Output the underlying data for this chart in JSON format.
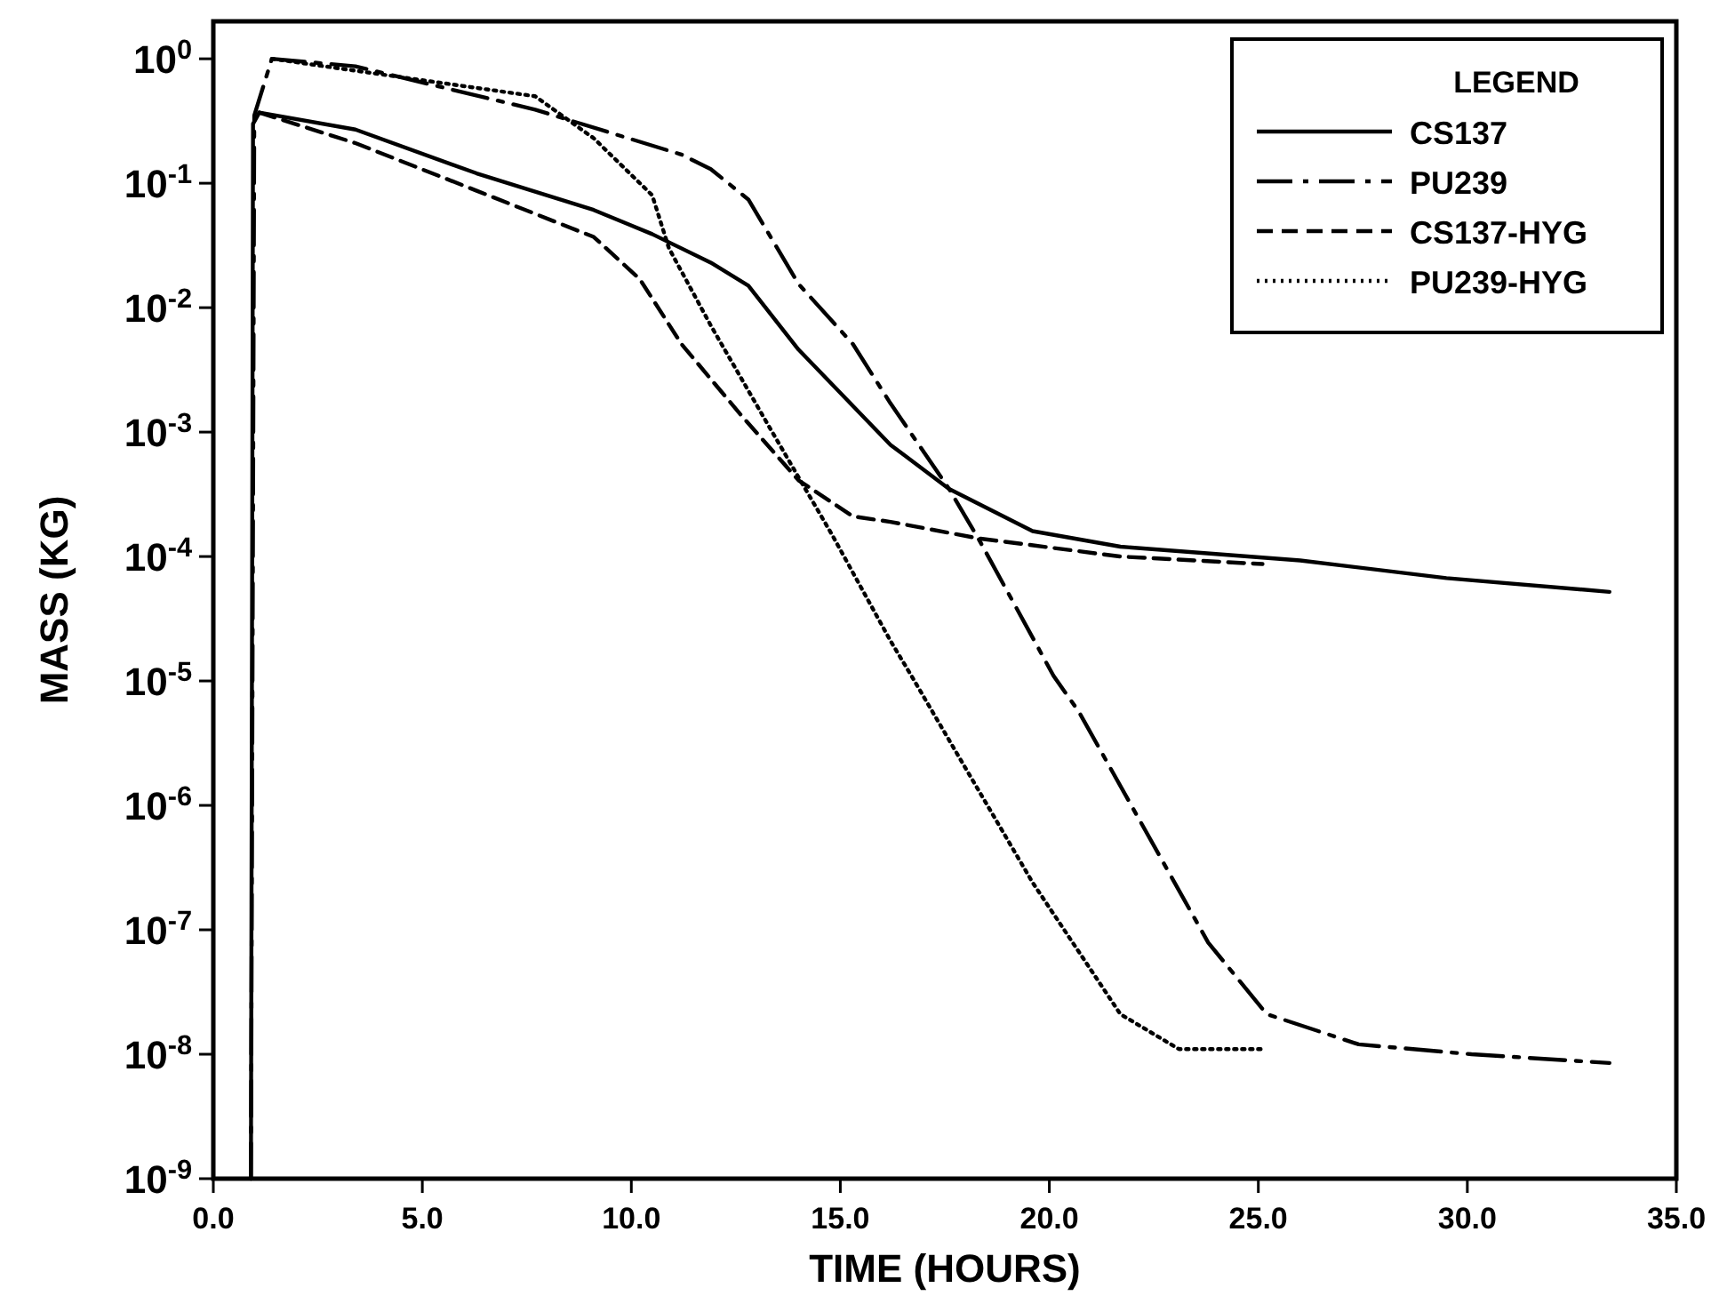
{
  "chart_data": {
    "type": "line",
    "xlabel": "TIME (HOURS)",
    "ylabel": "MASS (KG)",
    "legend_title": "LEGEND",
    "legend": "top right",
    "log": "y",
    "grid": false,
    "xlim": [
      0,
      35
    ],
    "xticks": [
      {
        "value": 0,
        "label": "0.0"
      },
      {
        "value": 5,
        "label": "5.0"
      },
      {
        "value": 10,
        "label": "10.0"
      },
      {
        "value": 15,
        "label": "15.0"
      },
      {
        "value": 20,
        "label": "20.0"
      },
      {
        "value": 25,
        "label": "25.0"
      },
      {
        "value": 30,
        "label": "30.0"
      },
      {
        "value": 35,
        "label": "35.0"
      }
    ],
    "ylim": [
      1e-09,
      2
    ],
    "yticks": [
      {
        "value": 1e-09,
        "label": "10$^{-9}$"
      },
      {
        "value": 1e-08,
        "label": "10$^{-8}$"
      },
      {
        "value": 1e-07,
        "label": "10$^{-7}$"
      },
      {
        "value": 1e-06,
        "label": "10$^{-6}$"
      },
      {
        "value": 1e-05,
        "label": "10$^{-5}$"
      },
      {
        "value": 0.0001,
        "label": "10$^{-4}$"
      },
      {
        "value": 0.001,
        "label": "10$^{-3}$"
      },
      {
        "value": 0.01,
        "label": "10$^{-2}$"
      },
      {
        "value": 0.1,
        "label": "10$^{-1}$"
      },
      {
        "value": 1,
        "label": "10$^{0}$"
      }
    ],
    "series": [
      {
        "name": "CS137",
        "color": "#000000",
        "line_style": "solid",
        "x": [
          0.9,
          0.95,
          1.1,
          3.4,
          6.3,
          9.1,
          10.5,
          11.9,
          12.8,
          14.0,
          16.2,
          17.6,
          19.6,
          21.7,
          26.0,
          29.5,
          33.4
        ],
        "values": [
          1e-09,
          0.3,
          0.37,
          0.27,
          0.12,
          0.061,
          0.039,
          0.023,
          0.015,
          0.0046,
          0.00079,
          0.00035,
          0.00016,
          0.00012,
          9.3e-05,
          6.7e-05,
          5.2e-05
        ]
      },
      {
        "name": "PU239",
        "color": "#000000",
        "line_style": "dashdot",
        "x": [
          0.9,
          0.98,
          1.4,
          3.4,
          7.7,
          11.2,
          11.9,
          12.8,
          14.0,
          15.3,
          16.2,
          17.6,
          18.3,
          20.1,
          20.7,
          23.8,
          25.2,
          27.4,
          30.1,
          33.4
        ],
        "values": [
          1e-09,
          0.35,
          1.0,
          0.87,
          0.39,
          0.17,
          0.13,
          0.074,
          0.0155,
          0.0051,
          0.0017,
          0.00035,
          0.00014,
          1.1e-05,
          5.7e-06,
          7.9e-08,
          2.1e-08,
          1.2e-08,
          1e-08,
          8.5e-09
        ]
      },
      {
        "name": "CS137-HYG",
        "color": "#000000",
        "line_style": "dashed",
        "x": [
          1.1,
          3.4,
          6.3,
          9.1,
          10.2,
          11.2,
          12.6,
          14.0,
          15.3,
          16.2,
          18.3,
          21.7,
          25.1
        ],
        "values": [
          0.37,
          0.21,
          0.087,
          0.037,
          0.017,
          0.0051,
          0.0014,
          0.00041,
          0.00021,
          0.00019,
          0.00014,
          0.0001,
          8.7e-05
        ]
      },
      {
        "name": "PU239-HYG",
        "color": "#000000",
        "line_style": "dotted",
        "x": [
          1.4,
          7.7,
          9.1,
          10.5,
          10.9,
          11.9,
          13.3,
          14.8,
          16.2,
          16.7,
          19.6,
          21.7,
          23.1,
          25.1
        ],
        "values": [
          1.0,
          0.5,
          0.23,
          0.08,
          0.03,
          0.0072,
          0.0011,
          0.00015,
          2.1e-05,
          1.1e-05,
          2.4e-07,
          2.1e-08,
          1.1e-08,
          1.1e-08
        ]
      }
    ]
  }
}
